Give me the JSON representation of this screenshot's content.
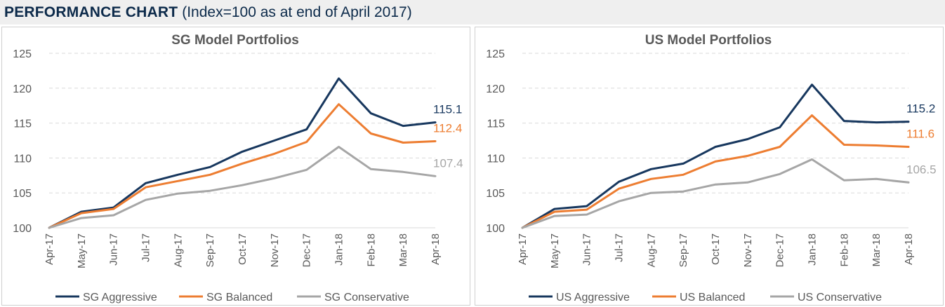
{
  "header": {
    "title_bold": "PERFORMANCE CHART",
    "title_rest": "(Index=100 as at end of April 2017)"
  },
  "chart_data": [
    {
      "type": "line",
      "title": "SG Model Portfolios",
      "xlabel": "",
      "ylabel": "",
      "ylim": [
        100,
        125
      ],
      "yticks": [
        100,
        105,
        110,
        115,
        120,
        125
      ],
      "grid": true,
      "legend_position": "bottom",
      "categories": [
        "Apr-17",
        "May-17",
        "Jun-17",
        "Jul-17",
        "Aug-17",
        "Sep-17",
        "Oct-17",
        "Nov-17",
        "Dec-17",
        "Jan-18",
        "Feb-18",
        "Mar-18",
        "Apr-18"
      ],
      "series": [
        {
          "name": "SG Aggressive",
          "color": "#17375e",
          "end_label": "115.1",
          "values": [
            100,
            102.3,
            102.9,
            106.4,
            107.6,
            108.7,
            110.9,
            112.5,
            114.1,
            121.4,
            116.4,
            114.6,
            115.1
          ]
        },
        {
          "name": "SG Balanced",
          "color": "#ed7d31",
          "end_label": "112.4",
          "values": [
            100,
            102.1,
            102.7,
            105.8,
            106.7,
            107.6,
            109.2,
            110.6,
            112.3,
            117.7,
            113.5,
            112.2,
            112.4
          ]
        },
        {
          "name": "SG Conservative",
          "color": "#a6a6a6",
          "end_label": "107.4",
          "values": [
            100,
            101.4,
            101.8,
            104.0,
            104.9,
            105.3,
            106.1,
            107.1,
            108.3,
            111.6,
            108.4,
            108.0,
            107.4
          ]
        }
      ]
    },
    {
      "type": "line",
      "title": "US Model Portfolios",
      "xlabel": "",
      "ylabel": "",
      "ylim": [
        100,
        125
      ],
      "yticks": [
        100,
        105,
        110,
        115,
        120,
        125
      ],
      "grid": true,
      "legend_position": "bottom",
      "categories": [
        "Apr-17",
        "May-17",
        "Jun-17",
        "Jul-17",
        "Aug-17",
        "Sep-17",
        "Oct-17",
        "Nov-17",
        "Dec-17",
        "Jan-18",
        "Feb-18",
        "Mar-18",
        "Apr-18"
      ],
      "series": [
        {
          "name": "US Aggressive",
          "color": "#17375e",
          "end_label": "115.2",
          "values": [
            100,
            102.7,
            103.1,
            106.6,
            108.4,
            109.2,
            111.6,
            112.7,
            114.4,
            120.5,
            115.3,
            115.1,
            115.2
          ]
        },
        {
          "name": "US Balanced",
          "color": "#ed7d31",
          "end_label": "111.6",
          "values": [
            100,
            102.3,
            102.6,
            105.6,
            107.0,
            107.6,
            109.5,
            110.3,
            111.6,
            116.1,
            111.9,
            111.8,
            111.6
          ]
        },
        {
          "name": "US Conservative",
          "color": "#a6a6a6",
          "end_label": "106.5",
          "values": [
            100,
            101.7,
            101.9,
            103.8,
            105.0,
            105.2,
            106.2,
            106.5,
            107.7,
            109.8,
            106.8,
            107.0,
            106.5
          ]
        }
      ]
    }
  ]
}
